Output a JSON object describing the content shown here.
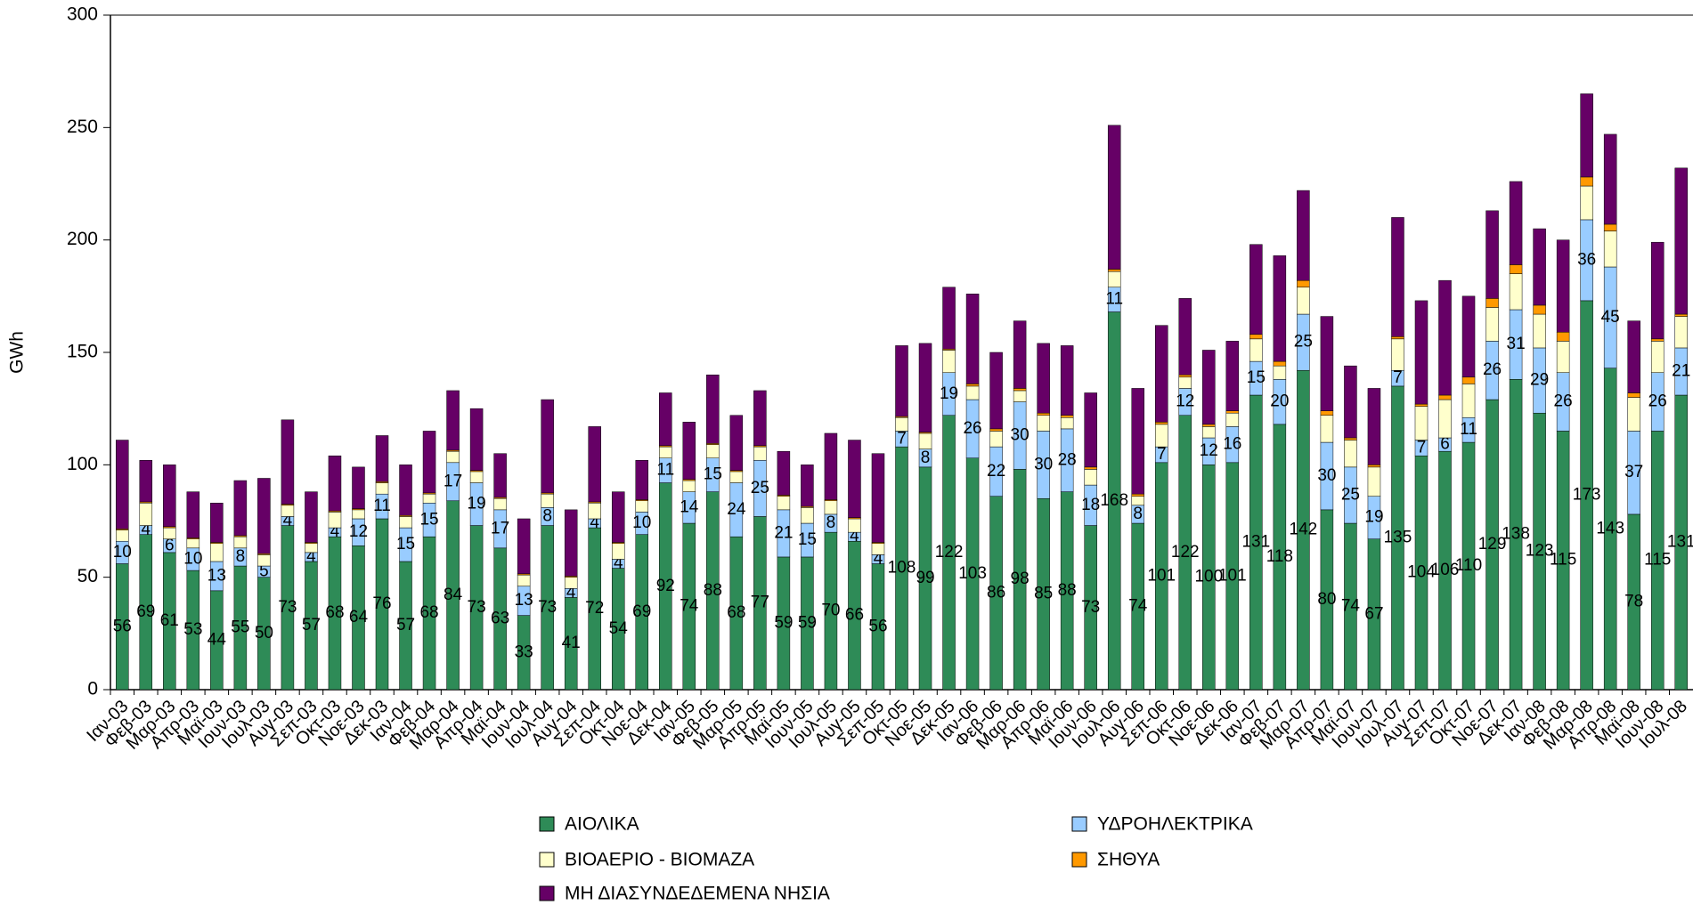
{
  "chart_data": {
    "type": "stacked_bar",
    "y_label": "GWh",
    "categories": [
      "Ιαν-03",
      "Φεβ-03",
      "Μαρ-03",
      "Απρ-03",
      "Μαϊ-03",
      "Ιουν-03",
      "Ιουλ-03",
      "Αυγ-03",
      "Σεπ-03",
      "Οκτ-03",
      "Νοε-03",
      "Δεκ-03",
      "Ιαν-04",
      "Φεβ-04",
      "Μαρ-04",
      "Απρ-04",
      "Μαϊ-04",
      "Ιουν-04",
      "Ιουλ-04",
      "Αυγ-04",
      "Σεπ-04",
      "Οκτ-04",
      "Νοε-04",
      "Δεκ-04",
      "Ιαν-05",
      "Φεβ-05",
      "Μαρ-05",
      "Απρ-05",
      "Μαϊ-05",
      "Ιουν-05",
      "Ιουλ-05",
      "Αυγ-05",
      "Σεπ-05",
      "Οκτ-05",
      "Νοε-05",
      "Δεκ-05",
      "Ιαν-06",
      "Φεβ-06",
      "Μαρ-06",
      "Απρ-06",
      "Μαϊ-06",
      "Ιουν-06",
      "Ιουλ-06",
      "Αυγ-06",
      "Σεπ-06",
      "Οκτ-06",
      "Νοε-06",
      "Δεκ-06",
      "Ιαν-07",
      "Φεβ-07",
      "Μαρ-07",
      "Απρ-07",
      "Μαϊ-07",
      "Ιουν-07",
      "Ιουλ-07",
      "Αυγ-07",
      "Σεπ-07",
      "Οκτ-07",
      "Νοε-07",
      "Δεκ-07",
      "Ιαν-08",
      "Φεβ-08",
      "Μαρ-08",
      "Απρ-08",
      "Μαϊ-08",
      "Ιουν-08",
      "Ιουλ-08"
    ],
    "series": [
      {
        "name": "ΑΙΟΛΙΚΑ",
        "color": "#2e8b57",
        "labels": true,
        "values": [
          56,
          69,
          61,
          53,
          44,
          55,
          50,
          73,
          57,
          68,
          64,
          76,
          57,
          68,
          84,
          73,
          63,
          33,
          73,
          41,
          72,
          54,
          69,
          92,
          74,
          88,
          68,
          77,
          59,
          59,
          70,
          66,
          56,
          108,
          99,
          122,
          103,
          86,
          98,
          85,
          88,
          73,
          168,
          74,
          101,
          122,
          100,
          101,
          131,
          118,
          142,
          80,
          74,
          67,
          135,
          104,
          106,
          110,
          129,
          138,
          123,
          115,
          173,
          143,
          78,
          115,
          131
        ]
      },
      {
        "name": "ΥΔΡΟΗΛΕΚΤΡΙΚΑ",
        "color": "#99ccff",
        "labels": true,
        "values": [
          10,
          4,
          6,
          10,
          13,
          8,
          5,
          4,
          4,
          4,
          12,
          11,
          15,
          15,
          17,
          19,
          17,
          13,
          8,
          4,
          4,
          4,
          10,
          11,
          14,
          15,
          24,
          25,
          21,
          15,
          8,
          4,
          4,
          7,
          8,
          19,
          26,
          22,
          30,
          30,
          28,
          18,
          11,
          8,
          7,
          12,
          12,
          16,
          15,
          20,
          25,
          30,
          25,
          19,
          7,
          7,
          6,
          11,
          26,
          31,
          29,
          26,
          36,
          45,
          37,
          26,
          21
        ]
      },
      {
        "name": "ΒΙΟΑΕΡΙΟ - ΒΙΟΜΑΖΑ",
        "color": "#ffffcc",
        "labels": false,
        "values": [
          5,
          10,
          5,
          4,
          8,
          5,
          5,
          5,
          4,
          7,
          4,
          5,
          5,
          4,
          5,
          5,
          5,
          5,
          6,
          5,
          7,
          7,
          5,
          5,
          5,
          6,
          5,
          6,
          6,
          7,
          6,
          6,
          5,
          6,
          7,
          10,
          6,
          7,
          5,
          7,
          5,
          7,
          7,
          4,
          10,
          5,
          5,
          6,
          10,
          6,
          12,
          12,
          12,
          13,
          14,
          15,
          17,
          15,
          15,
          16,
          15,
          14,
          15,
          16,
          15,
          14,
          14
        ]
      },
      {
        "name": "ΣΗΘΥΑ",
        "color": "#ff9900",
        "labels": false,
        "values": [
          0.5,
          0.5,
          0.5,
          0.5,
          0.5,
          0.5,
          0.5,
          0.5,
          0.5,
          0.5,
          0.5,
          0.5,
          0.5,
          0.5,
          0.5,
          0.5,
          0.5,
          0.5,
          0.5,
          0.5,
          0.5,
          0.5,
          0.5,
          0.5,
          0.5,
          0.5,
          0.5,
          0.5,
          0.5,
          0.5,
          0.5,
          0.5,
          0.5,
          0.5,
          0.5,
          0.5,
          1,
          1,
          1,
          1,
          1,
          1,
          1,
          1,
          1,
          1,
          1,
          1,
          2,
          2,
          3,
          2,
          1,
          1,
          1,
          1,
          2,
          3,
          4,
          4,
          4,
          4,
          4,
          3,
          2,
          1,
          1
        ]
      },
      {
        "name": "ΜΗ ΔΙΑΣΥΝΔΕΔΕΜΕΝΑ ΝΗΣΙΑ",
        "color": "#660066",
        "labels": false,
        "values": [
          39.5,
          18.5,
          27.5,
          20.5,
          17.5,
          24.5,
          33.5,
          37.5,
          22.5,
          24.5,
          18.5,
          20.5,
          22.5,
          27.5,
          26.5,
          27.5,
          19.5,
          24.5,
          41.5,
          29.5,
          33.5,
          22.5,
          17.5,
          23.5,
          25.5,
          30.5,
          24.5,
          24.5,
          19.5,
          18.5,
          29.5,
          34.5,
          39.5,
          31.5,
          39.5,
          27.5,
          40,
          34,
          30,
          31,
          31,
          33,
          64,
          47,
          43,
          34,
          33,
          31,
          40,
          47,
          40,
          42,
          32,
          34,
          53,
          46,
          51,
          36,
          39,
          37,
          34,
          41,
          37,
          40,
          32,
          43,
          65
        ]
      }
    ],
    "ylim": [
      0,
      300
    ],
    "yticks": [
      0,
      50,
      100,
      150,
      200,
      250,
      300
    ]
  }
}
